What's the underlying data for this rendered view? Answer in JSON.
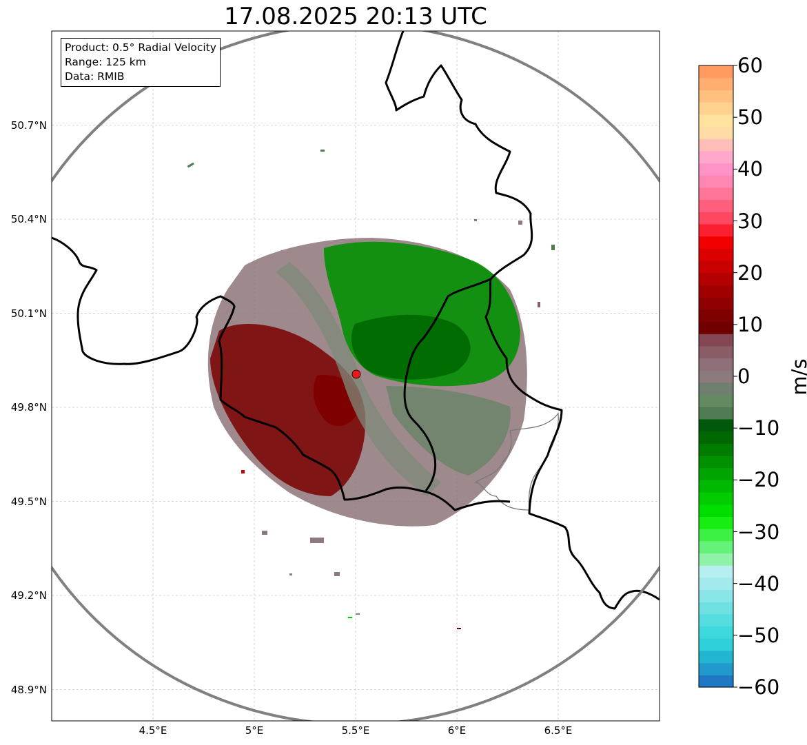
{
  "title": "17.08.2025 20:13 UTC",
  "info": {
    "product": "Product: 0.5° Radial Velocity",
    "range": "Range: 125 km",
    "source": "Data: RMIB"
  },
  "axes": {
    "lat_ticks": [
      {
        "label": "50.7°N",
        "value": 50.7
      },
      {
        "label": "50.4°N",
        "value": 50.4
      },
      {
        "label": "50.1°N",
        "value": 50.1
      },
      {
        "label": "49.8°N",
        "value": 49.8
      },
      {
        "label": "49.5°N",
        "value": 49.5
      },
      {
        "label": "49.2°N",
        "value": 49.2
      },
      {
        "label": "48.9°N",
        "value": 48.9
      }
    ],
    "lon_ticks": [
      {
        "label": "4.5°E",
        "value": 4.5
      },
      {
        "label": "5°E",
        "value": 5.0
      },
      {
        "label": "5.5°E",
        "value": 5.5
      },
      {
        "label": "6°E",
        "value": 6.0
      },
      {
        "label": "6.5°E",
        "value": 6.5
      }
    ],
    "lon_range": [
      4.0,
      7.0
    ],
    "lat_range": [
      48.8,
      51.0
    ],
    "grid": true
  },
  "radar": {
    "lon": 5.505,
    "lat": 49.914,
    "range_km": 125,
    "marker_color": "#e41a1c",
    "ring_color": "#808080"
  },
  "colorbar": {
    "label": "m/s",
    "min": -60,
    "max": 60,
    "ticks": [
      "60",
      "50",
      "40",
      "30",
      "20",
      "10",
      "0",
      "−10",
      "−20",
      "−30",
      "−40",
      "−50",
      "−60"
    ],
    "tick_values": [
      60,
      50,
      40,
      30,
      20,
      10,
      0,
      -10,
      -20,
      -30,
      -40,
      -50,
      -60
    ],
    "colors": [
      "#1f78c4",
      "#2299cc",
      "#22b5d0",
      "#2ecfd8",
      "#3dd8dc",
      "#55dcdf",
      "#6fe0e2",
      "#8ae5e7",
      "#a2eaec",
      "#b7eff0",
      "#8ff2a8",
      "#66f27a",
      "#3ef044",
      "#15ee10",
      "#00de00",
      "#00cc00",
      "#00b800",
      "#00a400",
      "#009000",
      "#007c00",
      "#006800",
      "#00580a",
      "#4f7a52",
      "#648a62",
      "#708070",
      "#8c7b7c",
      "#8f6f78",
      "#8a5d66",
      "#834652",
      "#700000",
      "#7f0000",
      "#8f0000",
      "#a00000",
      "#b40000",
      "#c80000",
      "#dd0000",
      "#f20000",
      "#fb2030",
      "#fe4760",
      "#ff5f7d",
      "#ff7598",
      "#ff86b2",
      "#ff92c6",
      "#ffa8cc",
      "#ffbfb8",
      "#ffdca5",
      "#ffe39e",
      "#ffd28f",
      "#ffc080",
      "#ffae6f",
      "#ff9b5e"
    ]
  }
}
